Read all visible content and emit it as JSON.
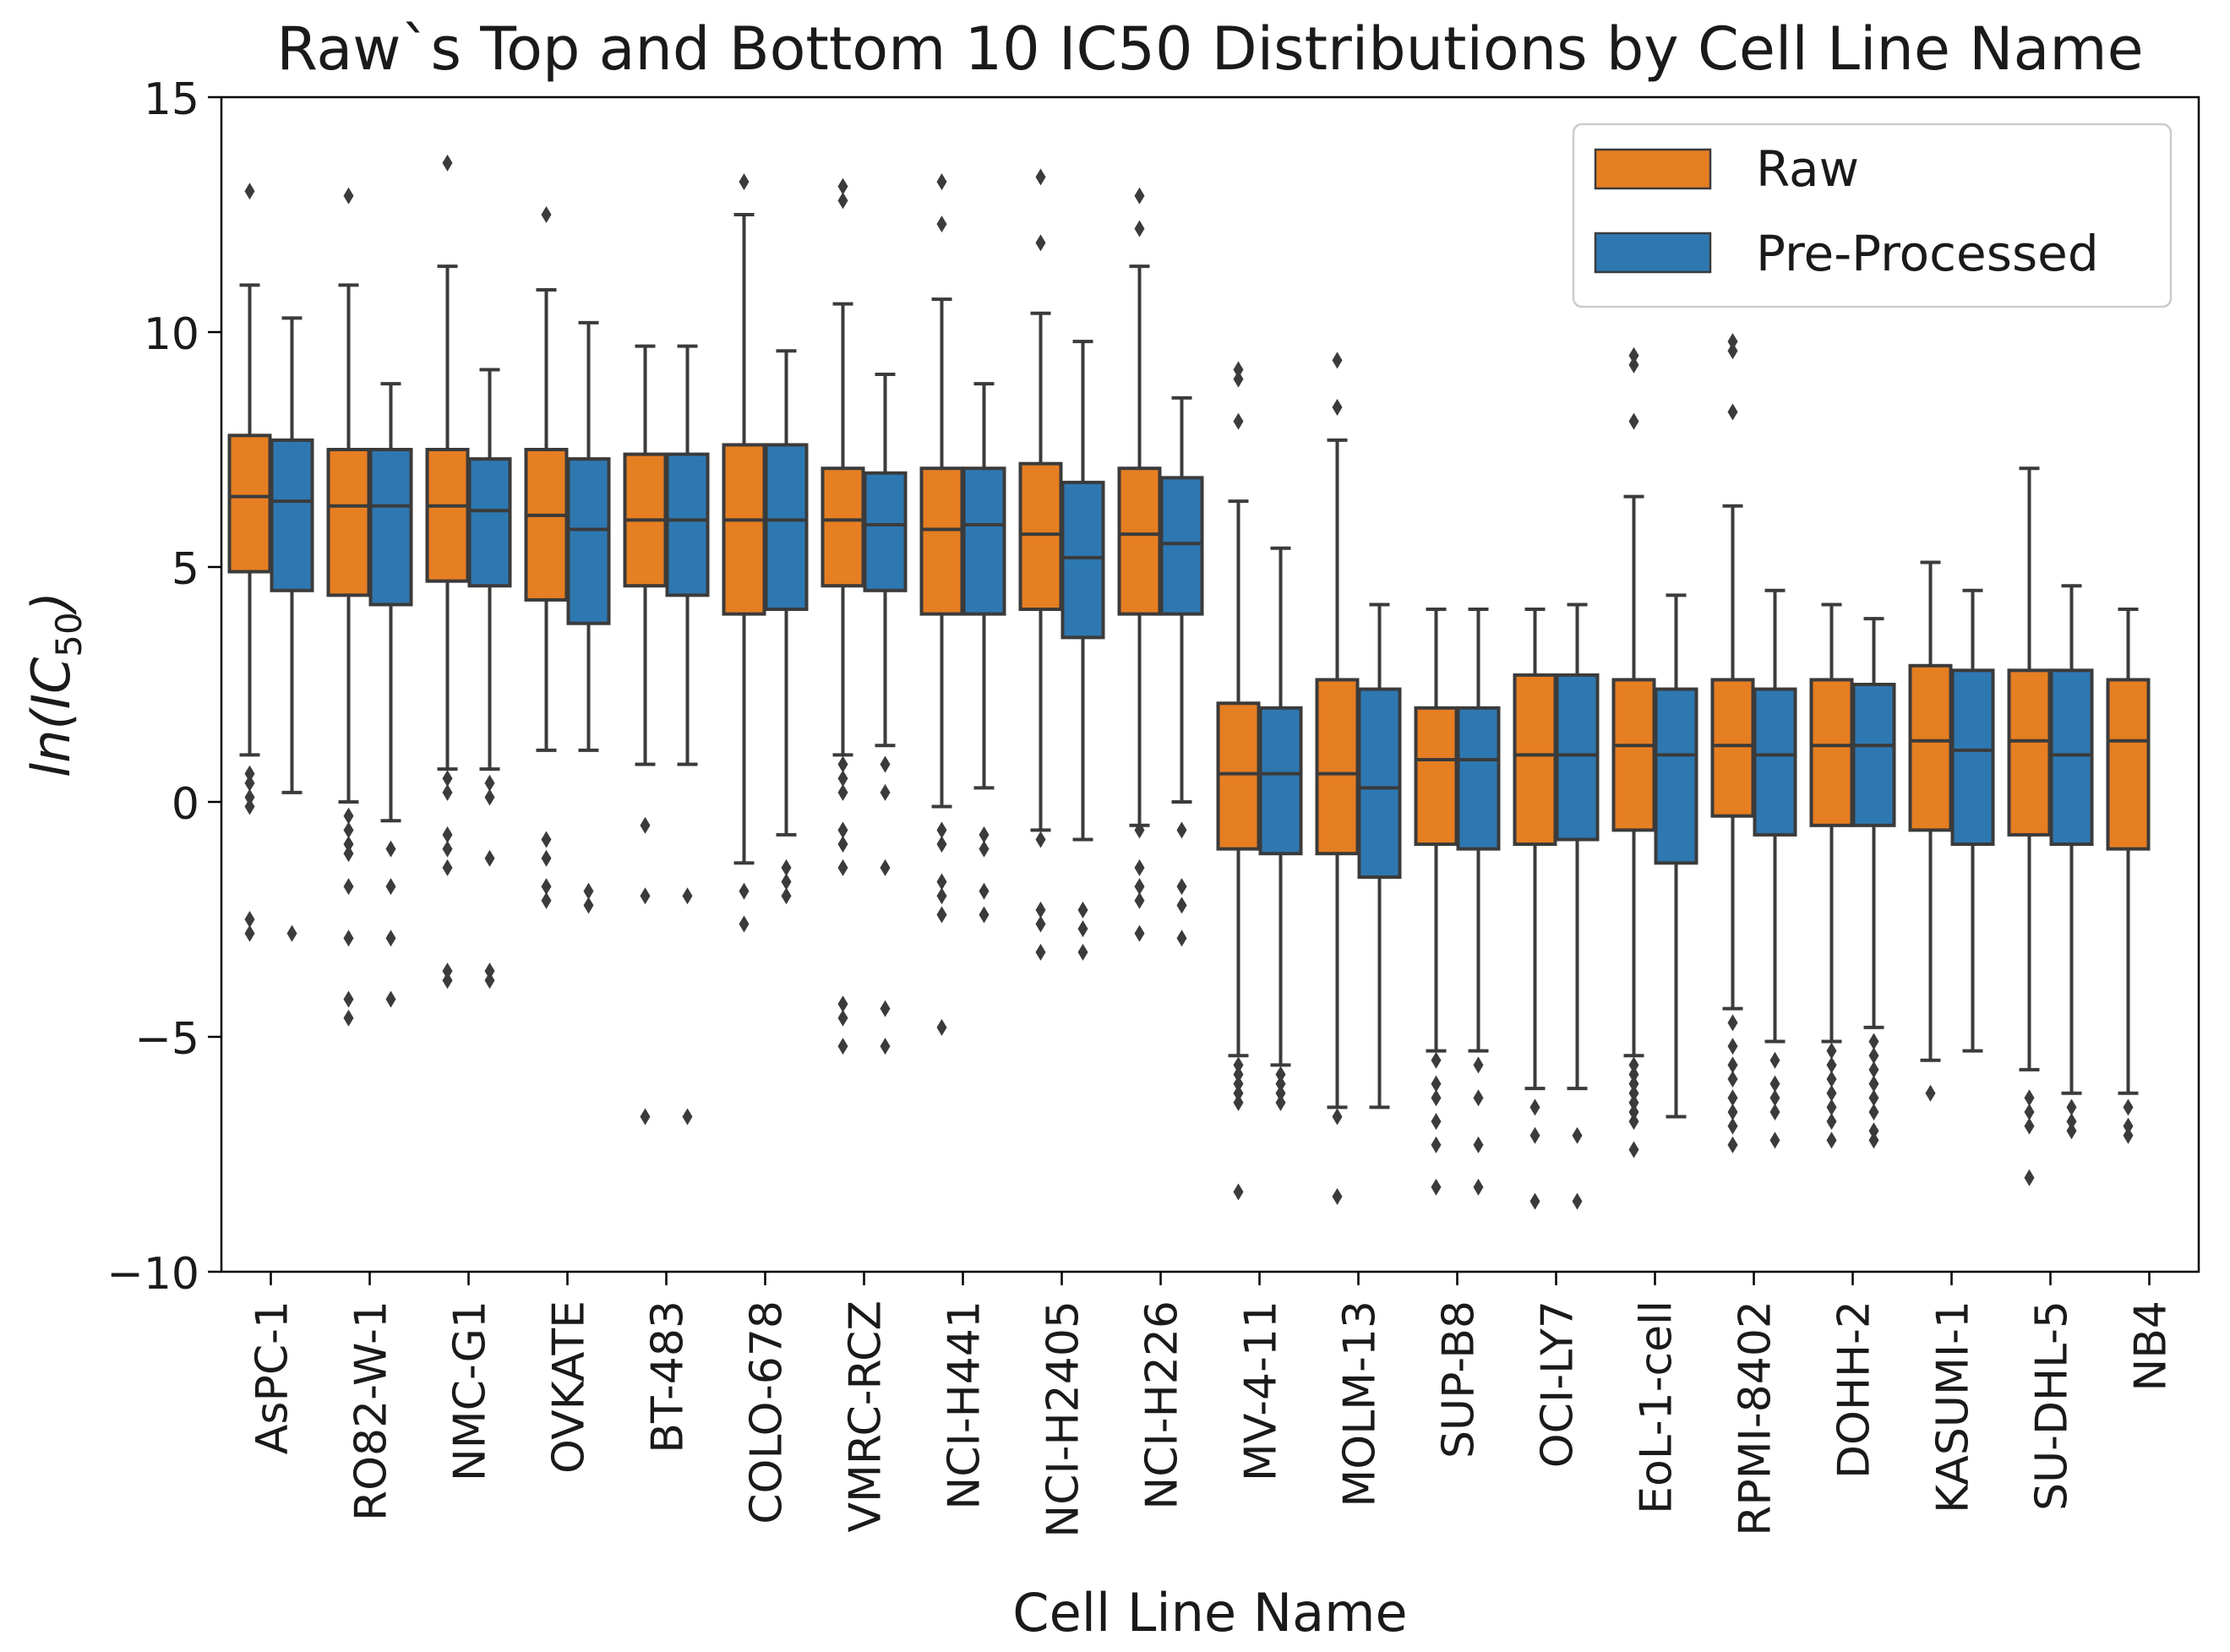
{
  "chart_data": {
    "type": "box",
    "title": "Raw`s Top and Bottom 10 IC50 Distributions by Cell Line Name",
    "xlabel": "Cell Line Name",
    "ylabel": {
      "prefix": "ln(IC",
      "sub": "50",
      "suffix": ")"
    },
    "ylim": [
      -10,
      15
    ],
    "yticks": [
      -10,
      -5,
      0,
      5,
      10,
      15
    ],
    "ytick_labels": [
      "−10",
      "−5",
      "0",
      "5",
      "10",
      "15"
    ],
    "grid": false,
    "legend_position": "top-right",
    "colors": {
      "Raw": "#e67e22",
      "Pre-Processed": "#2e78b2",
      "line": "#3b3b3b"
    },
    "categories": [
      "AsPC-1",
      "RO82-W-1",
      "NMC-G1",
      "OVKATE",
      "BT-483",
      "COLO-678",
      "VMRC-RCZ",
      "NCI-H441",
      "NCI-H2405",
      "NCI-H226",
      "MV-4-11",
      "MOLM-13",
      "SUP-B8",
      "OCI-LY7",
      "EoL-1-cell",
      "RPMI-8402",
      "DOHH-2",
      "KASUMI-1",
      "SU-DHL-5",
      "NB4"
    ],
    "series": [
      {
        "name": "Raw",
        "boxes": [
          {
            "low": 1.0,
            "q1": 4.9,
            "median": 6.5,
            "q3": 7.8,
            "high": 11.0,
            "outliers": [
              13.0,
              0.6,
              0.4,
              0.1,
              -0.1,
              -2.5,
              -2.8
            ]
          },
          {
            "low": 0.0,
            "q1": 4.4,
            "median": 6.3,
            "q3": 7.5,
            "high": 11.0,
            "outliers": [
              12.9,
              -0.3,
              -0.6,
              -0.9,
              -1.1,
              -1.8,
              -2.9,
              -4.2,
              -4.6
            ]
          },
          {
            "low": 0.7,
            "q1": 4.7,
            "median": 6.3,
            "q3": 7.5,
            "high": 11.4,
            "outliers": [
              13.6,
              0.5,
              0.2,
              -0.7,
              -1.0,
              -1.4,
              -3.6,
              -3.8
            ]
          },
          {
            "low": 1.1,
            "q1": 4.3,
            "median": 6.1,
            "q3": 7.5,
            "high": 10.9,
            "outliers": [
              12.5,
              -0.8,
              -1.2,
              -1.8,
              -2.1
            ]
          },
          {
            "low": 0.8,
            "q1": 4.6,
            "median": 6.0,
            "q3": 7.4,
            "high": 9.7,
            "outliers": [
              -0.5,
              -2.0,
              -6.7
            ]
          },
          {
            "low": -1.3,
            "q1": 4.0,
            "median": 6.0,
            "q3": 7.6,
            "high": 12.5,
            "outliers": [
              13.2,
              -1.9,
              -2.6
            ]
          },
          {
            "low": 1.0,
            "q1": 4.6,
            "median": 6.0,
            "q3": 7.1,
            "high": 10.6,
            "outliers": [
              13.1,
              12.8,
              0.8,
              0.5,
              0.2,
              -0.6,
              -0.9,
              -1.4,
              -4.3,
              -4.6,
              -5.2
            ]
          },
          {
            "low": -0.1,
            "q1": 4.0,
            "median": 5.8,
            "q3": 7.1,
            "high": 10.7,
            "outliers": [
              13.2,
              12.3,
              -0.6,
              -0.9,
              -1.7,
              -2.0,
              -2.4,
              -4.8
            ]
          },
          {
            "low": -0.6,
            "q1": 4.1,
            "median": 5.7,
            "q3": 7.2,
            "high": 10.4,
            "outliers": [
              13.3,
              11.9,
              -0.8,
              -2.3,
              -2.6,
              -3.2
            ]
          },
          {
            "low": -0.5,
            "q1": 4.0,
            "median": 5.7,
            "q3": 7.1,
            "high": 11.4,
            "outliers": [
              12.9,
              12.2,
              -0.6,
              -1.4,
              -1.8,
              -2.1,
              -2.8
            ]
          },
          {
            "low": -5.4,
            "q1": -1.0,
            "median": 0.6,
            "q3": 2.1,
            "high": 6.4,
            "outliers": [
              9.2,
              9.0,
              8.1,
              -5.6,
              -5.8,
              -6.0,
              -6.2,
              -6.4,
              -8.3
            ]
          },
          {
            "low": -6.5,
            "q1": -1.1,
            "median": 0.6,
            "q3": 2.6,
            "high": 7.7,
            "outliers": [
              9.4,
              8.4,
              -6.7,
              -8.4
            ]
          },
          {
            "low": -5.3,
            "q1": -0.9,
            "median": 0.9,
            "q3": 2.0,
            "high": 4.1,
            "outliers": [
              -5.5,
              -6.0,
              -6.3,
              -6.8,
              -7.3,
              -8.2
            ]
          },
          {
            "low": -6.1,
            "q1": -0.9,
            "median": 1.0,
            "q3": 2.7,
            "high": 4.1,
            "outliers": [
              -6.5,
              -7.1,
              -8.5
            ]
          },
          {
            "low": -5.4,
            "q1": -0.6,
            "median": 1.2,
            "q3": 2.6,
            "high": 6.5,
            "outliers": [
              9.5,
              9.3,
              8.1,
              -5.6,
              -5.8,
              -6.0,
              -6.2,
              -6.4,
              -6.6,
              -6.8,
              -7.4
            ]
          },
          {
            "low": -4.4,
            "q1": -0.3,
            "median": 1.2,
            "q3": 2.6,
            "high": 6.3,
            "outliers": [
              9.8,
              9.6,
              8.3,
              -4.7,
              -5.2,
              -5.6,
              -5.9,
              -6.3,
              -6.6,
              -6.9,
              -7.3
            ]
          },
          {
            "low": -5.1,
            "q1": -0.5,
            "median": 1.2,
            "q3": 2.6,
            "high": 4.2,
            "outliers": [
              -5.3,
              -5.6,
              -5.9,
              -6.2,
              -6.5,
              -6.8,
              -7.2
            ]
          },
          {
            "low": -5.5,
            "q1": -0.6,
            "median": 1.3,
            "q3": 2.9,
            "high": 5.1,
            "outliers": [
              -6.2
            ]
          },
          {
            "low": -5.7,
            "q1": -0.7,
            "median": 1.3,
            "q3": 2.8,
            "high": 7.1,
            "outliers": [
              -6.3,
              -6.6,
              -6.9,
              -8.0
            ]
          },
          {
            "low": -6.2,
            "q1": -1.0,
            "median": 1.3,
            "q3": 2.6,
            "high": 4.1,
            "outliers": [
              -6.5,
              -6.9,
              -7.1
            ]
          }
        ]
      },
      {
        "name": "Pre-Processed",
        "boxes": [
          {
            "low": 0.2,
            "q1": 4.5,
            "median": 6.4,
            "q3": 7.7,
            "high": 10.3,
            "outliers": [
              -2.8
            ]
          },
          {
            "low": -0.4,
            "q1": 4.2,
            "median": 6.3,
            "q3": 7.5,
            "high": 8.9,
            "outliers": [
              -1.0,
              -1.8,
              -2.9,
              -4.2
            ]
          },
          {
            "low": 0.7,
            "q1": 4.6,
            "median": 6.2,
            "q3": 7.3,
            "high": 9.2,
            "outliers": [
              0.4,
              0.1,
              -1.2,
              -3.6,
              -3.8
            ]
          },
          {
            "low": 1.1,
            "q1": 3.8,
            "median": 5.8,
            "q3": 7.3,
            "high": 10.2,
            "outliers": [
              -1.9,
              -2.2
            ]
          },
          {
            "low": 0.8,
            "q1": 4.4,
            "median": 6.0,
            "q3": 7.4,
            "high": 9.7,
            "outliers": [
              -2.0,
              -6.7
            ]
          },
          {
            "low": -0.7,
            "q1": 4.1,
            "median": 6.0,
            "q3": 7.6,
            "high": 9.6,
            "outliers": [
              -1.4,
              -1.7,
              -2.0
            ]
          },
          {
            "low": 1.2,
            "q1": 4.5,
            "median": 5.9,
            "q3": 7.0,
            "high": 9.1,
            "outliers": [
              0.8,
              0.2,
              -1.4,
              -4.4,
              -5.2
            ]
          },
          {
            "low": 0.3,
            "q1": 4.0,
            "median": 5.9,
            "q3": 7.1,
            "high": 8.9,
            "outliers": [
              -0.7,
              -1.0,
              -1.9,
              -2.4
            ]
          },
          {
            "low": -0.8,
            "q1": 3.5,
            "median": 5.2,
            "q3": 6.8,
            "high": 9.8,
            "outliers": [
              -2.3,
              -2.7,
              -3.2
            ]
          },
          {
            "low": 0.0,
            "q1": 4.0,
            "median": 5.5,
            "q3": 6.9,
            "high": 8.6,
            "outliers": [
              -0.6,
              -1.8,
              -2.2,
              -2.9
            ]
          },
          {
            "low": -5.6,
            "q1": -1.1,
            "median": 0.6,
            "q3": 2.0,
            "high": 5.4,
            "outliers": [
              -5.8,
              -6.0,
              -6.2,
              -6.4
            ]
          },
          {
            "low": -6.5,
            "q1": -1.6,
            "median": 0.3,
            "q3": 2.4,
            "high": 4.2,
            "outliers": []
          },
          {
            "low": -5.3,
            "q1": -1.0,
            "median": 0.9,
            "q3": 2.0,
            "high": 4.1,
            "outliers": [
              -5.6,
              -6.3,
              -7.3,
              -8.2
            ]
          },
          {
            "low": -6.1,
            "q1": -0.8,
            "median": 1.0,
            "q3": 2.7,
            "high": 4.2,
            "outliers": [
              -7.1,
              -8.5
            ]
          },
          {
            "low": -6.7,
            "q1": -1.3,
            "median": 1.0,
            "q3": 2.4,
            "high": 4.4,
            "outliers": []
          },
          {
            "low": -5.1,
            "q1": -0.7,
            "median": 1.0,
            "q3": 2.4,
            "high": 4.5,
            "outliers": [
              -5.5,
              -6.0,
              -6.3,
              -6.6,
              -7.2
            ]
          },
          {
            "low": -4.8,
            "q1": -0.5,
            "median": 1.2,
            "q3": 2.5,
            "high": 3.9,
            "outliers": [
              -5.1,
              -5.4,
              -5.7,
              -6.0,
              -6.3,
              -6.6,
              -7.0,
              -7.2
            ]
          },
          {
            "low": -5.3,
            "q1": -0.9,
            "median": 1.1,
            "q3": 2.8,
            "high": 4.5,
            "outliers": []
          },
          {
            "low": -6.2,
            "q1": -0.9,
            "median": 1.0,
            "q3": 2.8,
            "high": 4.6,
            "outliers": [
              -6.5,
              -6.8,
              -7.0
            ]
          },
          null
        ]
      }
    ]
  }
}
